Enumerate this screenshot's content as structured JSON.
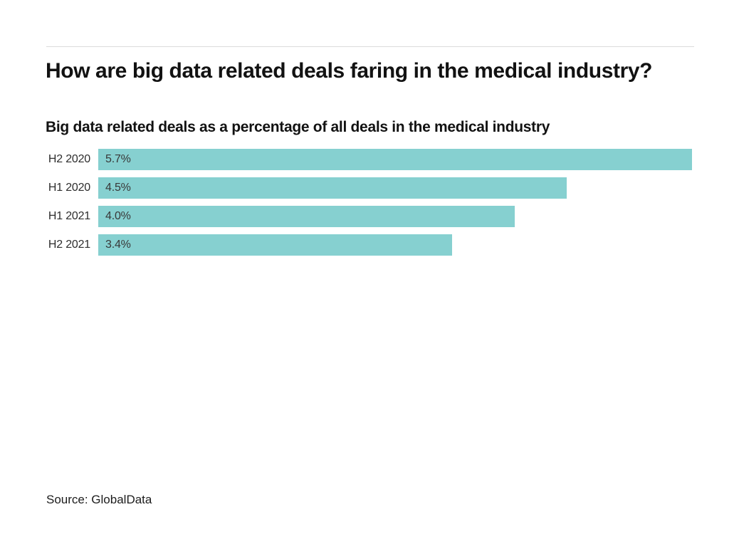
{
  "header": {
    "title": "How are big data related deals faring in the medical industry?",
    "subtitle": "Big data related deals as a percentage of all deals in the medical industry"
  },
  "chart_data": {
    "type": "bar",
    "orientation": "horizontal",
    "title": "How are big data related deals faring in the medical industry?",
    "subtitle": "Big data related deals as a percentage of all deals in the medical industry",
    "categories": [
      "H2 2020",
      "H1 2020",
      "H1 2021",
      "H2 2021"
    ],
    "values": [
      5.7,
      4.5,
      4.0,
      3.4
    ],
    "value_labels": [
      "5.7%",
      "4.5%",
      "4.0%",
      "3.4%"
    ],
    "xlabel": "",
    "ylabel": "",
    "xlim": [
      0,
      5.7
    ],
    "grid": false,
    "legend": false,
    "bar_color": "#86d0d0",
    "value_label_position": "inside-left"
  },
  "footer": {
    "source": "Source: GlobalData"
  }
}
